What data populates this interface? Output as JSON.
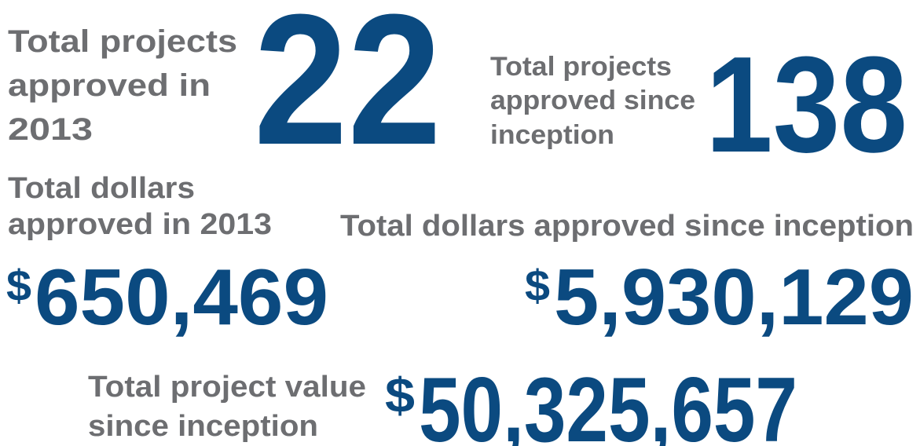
{
  "stats": [
    {
      "label": [
        "Total projects",
        "approved in",
        "2013"
      ],
      "value": "22"
    },
    {
      "label": [
        "Total projects",
        "approved since",
        "inception"
      ],
      "value": "138"
    },
    {
      "label": [
        "Total dollars",
        "approved in 2013"
      ],
      "prefix": "$",
      "value": "650,469"
    },
    {
      "label": [
        "Total dollars approved since inception"
      ],
      "prefix": "$",
      "value": "5,930,129"
    },
    {
      "label": [
        "Total project value",
        "since inception"
      ],
      "prefix": "$",
      "value": "50,325,657"
    }
  ]
}
